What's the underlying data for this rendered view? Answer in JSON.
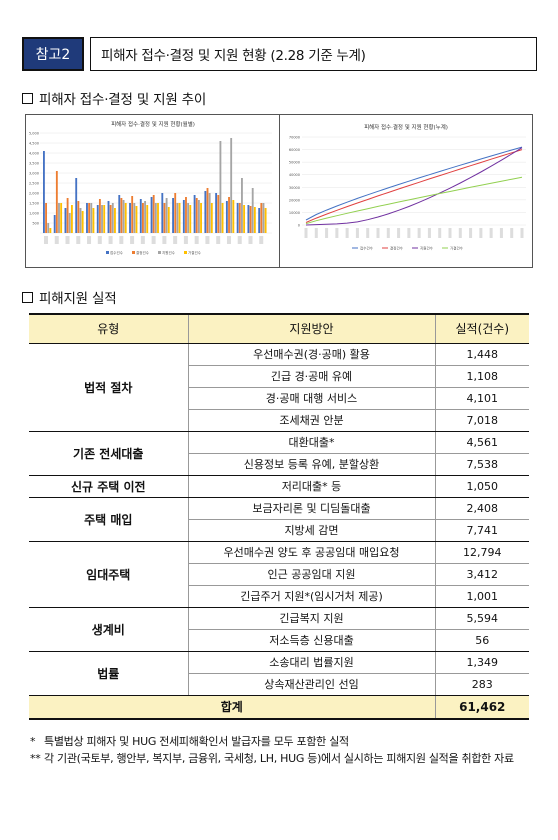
{
  "header": {
    "tag": "참고2",
    "title": "피해자 접수·결정 및 지원 현황 (2.28 기준 누계)"
  },
  "section1": {
    "title": "피해자 접수·결정 및 지원 추이"
  },
  "chart_left": {
    "type": "bar",
    "title": "피해자 접수·결정 및 지원 현황(월별)",
    "yticks": [
      "5,000",
      "4,500",
      "4,000",
      "3,500",
      "3,000",
      "2,500",
      "2,000",
      "1,500",
      "1,000",
      "500",
      ""
    ],
    "legend": [
      "접수건수",
      "결정건수",
      "지원건수",
      "가결건수"
    ],
    "colors": [
      "#4472c4",
      "#ed7d31",
      "#a5a5a5",
      "#ffc000",
      "#8e7cc3"
    ]
  },
  "chart_right": {
    "type": "line",
    "title": "피해자 접수·결정 및 지원 현황(누계)",
    "yticks": [
      "70000",
      "60000",
      "50000",
      "40000",
      "30000",
      "20000",
      "10000",
      "0"
    ],
    "legend": [
      "접수건수",
      "결정건수",
      "지원건수",
      "가결건수"
    ],
    "colors": [
      "#4472c4",
      "#e04040",
      "#7030a0",
      "#92d050"
    ]
  },
  "section2": {
    "title": "피해지원 실적"
  },
  "table": {
    "headers": {
      "type": "유형",
      "method": "지원방안",
      "count": "실적(건수)"
    },
    "groups": [
      {
        "type": "법적 절차",
        "rows": [
          {
            "method": "우선매수권(경·공매) 활용",
            "count": "1,448"
          },
          {
            "method": "긴급 경·공매 유예",
            "count": "1,108"
          },
          {
            "method": "경·공매 대행 서비스",
            "count": "4,101"
          },
          {
            "method": "조세채권 안분",
            "count": "7,018"
          }
        ]
      },
      {
        "type": "기존 전세대출",
        "rows": [
          {
            "method": "대환대출*",
            "count": "4,561"
          },
          {
            "method": "신용정보 등록 유예, 분할상환",
            "count": "7,538"
          }
        ]
      },
      {
        "type": "신규 주택 이전",
        "rows": [
          {
            "method": "저리대출* 등",
            "count": "1,050"
          }
        ]
      },
      {
        "type": "주택 매입",
        "rows": [
          {
            "method": "보금자리론 및 디딤돌대출",
            "count": "2,408"
          },
          {
            "method": "지방세 감면",
            "count": "7,741"
          }
        ]
      },
      {
        "type": "임대주택",
        "rows": [
          {
            "method": "우선매수권 양도 후 공공임대 매입요청",
            "count": "12,794"
          },
          {
            "method": "인근 공공임대 지원",
            "count": "3,412"
          },
          {
            "method": "긴급주거 지원*(임시거처 제공)",
            "count": "1,001"
          }
        ]
      },
      {
        "type": "생계비",
        "rows": [
          {
            "method": "긴급복지 지원",
            "count": "5,594"
          },
          {
            "method": "저소득층 신용대출",
            "count": "56"
          }
        ]
      },
      {
        "type": "법률",
        "rows": [
          {
            "method": "소송대리 법률지원",
            "count": "1,349"
          },
          {
            "method": "상속재산관리인 선임",
            "count": "283"
          }
        ]
      }
    ],
    "total": {
      "label": "합계",
      "count": "61,462"
    }
  },
  "notes": [
    {
      "mark": "*",
      "text": "특별법상 피해자 및 HUG 전세피해확인서 발급자를 모두 포함한 실적"
    },
    {
      "mark": "**",
      "text": "각 기관(국토부, 행안부, 복지부, 금융위, 국세청, LH, HUG 등)에서 실시하는 피해지원 실적을 취합한 자료"
    }
  ]
}
